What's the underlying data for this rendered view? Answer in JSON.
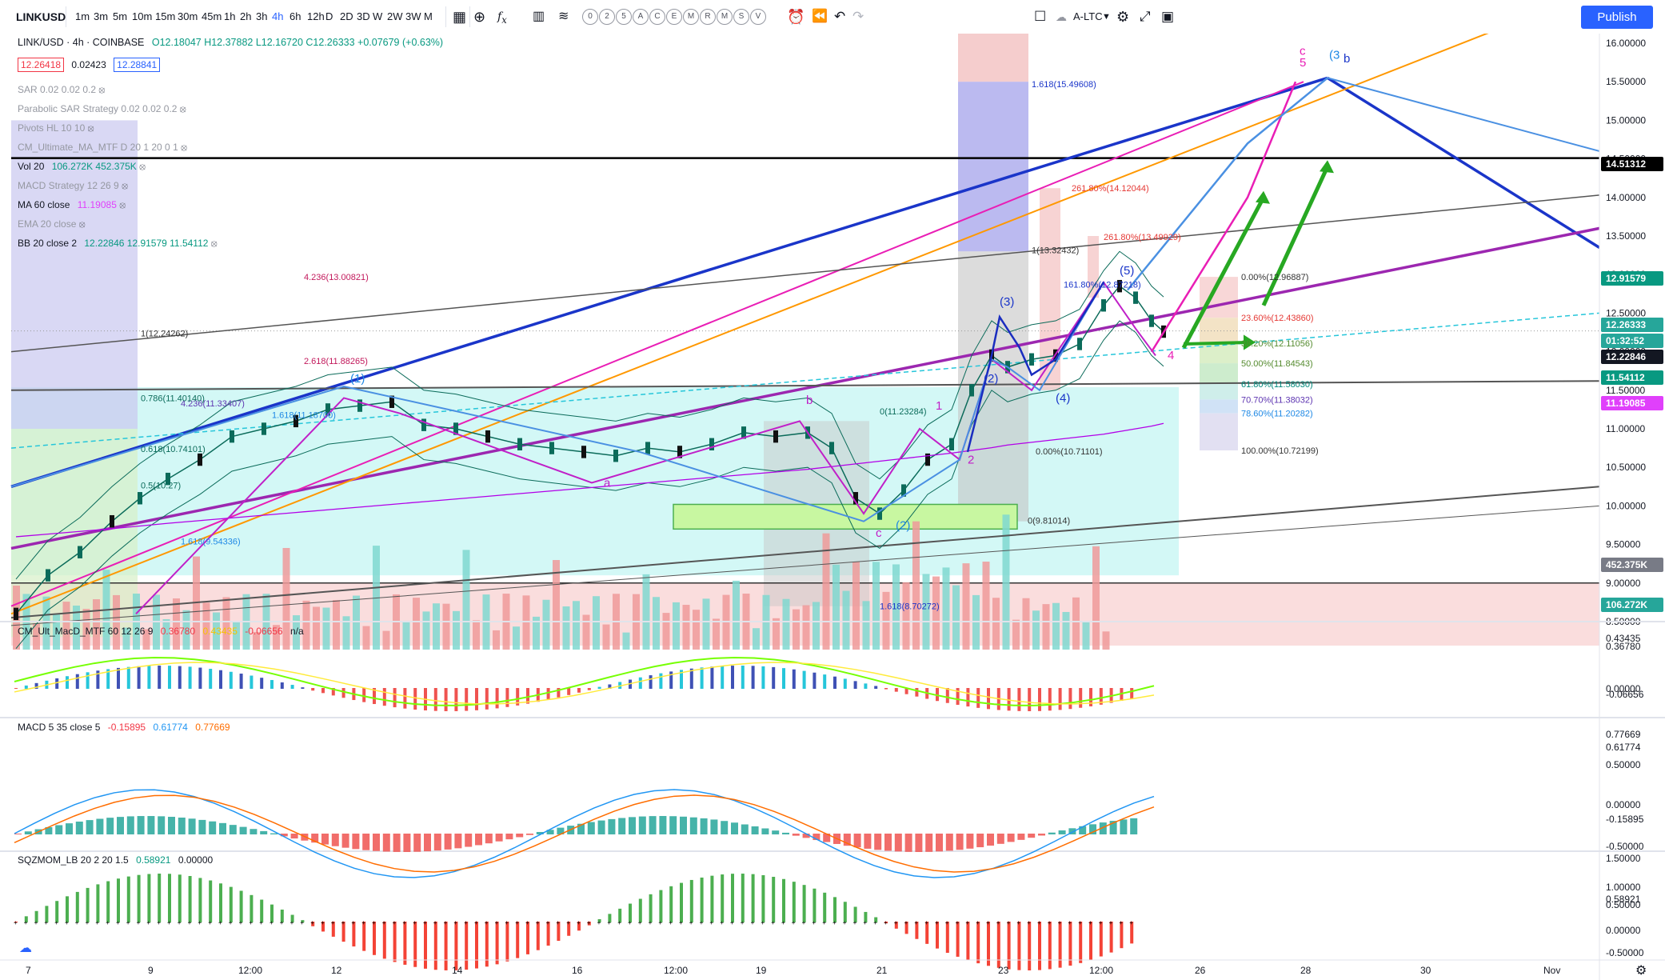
{
  "toolbar": {
    "symbol": "LINKUSD",
    "intervals": [
      "1m",
      "3m",
      "5m",
      "10m",
      "15m",
      "30m",
      "45m",
      "1h",
      "2h",
      "3h",
      "4h",
      "6h",
      "12h",
      "D",
      "2D",
      "3D",
      "W",
      "2W",
      "3W",
      "M"
    ],
    "active_interval": "4h",
    "letter_buttons": [
      "0",
      "2",
      "5",
      "A",
      "C",
      "E",
      "M",
      "R",
      "M",
      "S",
      "V"
    ],
    "compare_label": "A-LTC",
    "publish_label": "Publish"
  },
  "legend": {
    "title": "LINK/USD · 4h · COINBASE",
    "ohlc": "O12.18047 H12.37882 L12.16720 C12.26333 +0.07679 (+0.63%)",
    "price_box1": "12.26418",
    "price_box_mid": "0.02423",
    "price_box2": "12.28841",
    "indicators": [
      {
        "label": "SAR 0.02 0.02 0.2",
        "value": ""
      },
      {
        "label": "Parabolic SAR Strategy 0.02 0.02 0.2",
        "value": ""
      },
      {
        "label": "Pivots HL 10 10",
        "value": ""
      },
      {
        "label": "CM_Ultimate_MA_MTF D 20 1 20 0 1",
        "value": ""
      },
      {
        "label": "Vol 20",
        "value": "106.272K  452.375K"
      },
      {
        "label": "MACD Strategy 12 26 9",
        "value": ""
      },
      {
        "label": "MA 60 close",
        "value": "11.19085"
      },
      {
        "label": "EMA 20 close",
        "value": ""
      },
      {
        "label": "BB 20 close 2",
        "value": "12.22846  12.91579  11.54112"
      }
    ]
  },
  "pane_legends": {
    "macd_mtf": {
      "label": "CM_Ult_MacD_MTF 60 12 26 9",
      "v1": "0.36780",
      "v2": "0.43435",
      "v3": "-0.06656",
      "v4": "n/a"
    },
    "macd": {
      "label": "MACD 5 35 close 5",
      "v1": "-0.15895",
      "v2": "0.61774",
      "v3": "0.77669"
    },
    "sqz": {
      "label": "SQZMOM_LB 20 2 20 1.5",
      "v1": "0.58921",
      "v2": "0.00000"
    }
  },
  "price_axis": [
    "16.00000",
    "15.50000",
    "15.00000",
    "14.50000",
    "14.00000",
    "13.50000",
    "13.00000",
    "12.50000",
    "12.00000",
    "11.50000",
    "11.00000",
    "10.50000",
    "10.00000",
    "9.50000",
    "9.00000",
    "8.50000"
  ],
  "price_labels": [
    {
      "text": "14.51312",
      "color": "#000000",
      "y": 205
    },
    {
      "text": "12.91579",
      "color": "#089981",
      "y": 348
    },
    {
      "text": "LINKUSD",
      "color": "#2a8c8c",
      "y": 406
    },
    {
      "text": "12.26333",
      "color": "#26a69a",
      "y": 406
    },
    {
      "text": "01:32:52",
      "color": "#26a69a",
      "y": 426
    },
    {
      "text": "12.22846",
      "color": "#131722",
      "y": 446
    },
    {
      "text": "11.54112",
      "color": "#089981",
      "y": 472
    },
    {
      "text": "11.19085",
      "color": "#e040fb",
      "y": 504
    },
    {
      "text": "452.375K",
      "color": "#787b86",
      "y": 706
    },
    {
      "text": "106.272K",
      "color": "#26a69a",
      "y": 756
    }
  ],
  "macd_mtf_axis": [
    "0.43435",
    "0.36780",
    "0.00000",
    "-0.06656"
  ],
  "macd_axis": [
    "0.77669",
    "0.61774",
    "0.50000",
    "0.00000",
    "-0.15895",
    "-0.50000"
  ],
  "sqz_axis": [
    "1.50000",
    "1.00000",
    "0.58921",
    "0.50000",
    "0.00000",
    "-0.50000"
  ],
  "time_axis": [
    "7",
    "9",
    "12:00",
    "12",
    "14",
    "16",
    "12:00",
    "19",
    "21",
    "23",
    "12:00",
    "26",
    "28",
    "30",
    "Nov"
  ],
  "fib_labels": [
    "1.618(15.49608)",
    "261.80%(14.12044)",
    "261.80%(13.49929)",
    "1(13.32432)",
    "0.00%(12.96887)",
    "161.80%(12.87218)",
    "23.60%(12.43860)",
    "38.20%(12.11056)",
    "50.00%(11.84543)",
    "61.80%(11.58030)",
    "70.70%(11.38032)",
    "78.60%(11.20282)",
    "100.00%(10.72199)",
    "0.00%(10.71101)",
    "4.236(13.00821)",
    "2.618(11.88265)",
    "4.236(11.33407)",
    "1.618(11.18700)",
    "0.786(11.40140)",
    "0.618(10.74101)",
    "0.5(10.27)",
    "1.618(9.54336)",
    "1.618(8.70272)",
    "0(9.81014)",
    "0(11.23284)",
    "1(12.24262)"
  ],
  "wave_labels": [
    "(1)",
    "(2)",
    "(3)",
    "(4)",
    "(5)",
    "1",
    "2",
    "4",
    "5",
    "a",
    "b",
    "c",
    "(3",
    "b",
    "c",
    "(2)"
  ]
}
